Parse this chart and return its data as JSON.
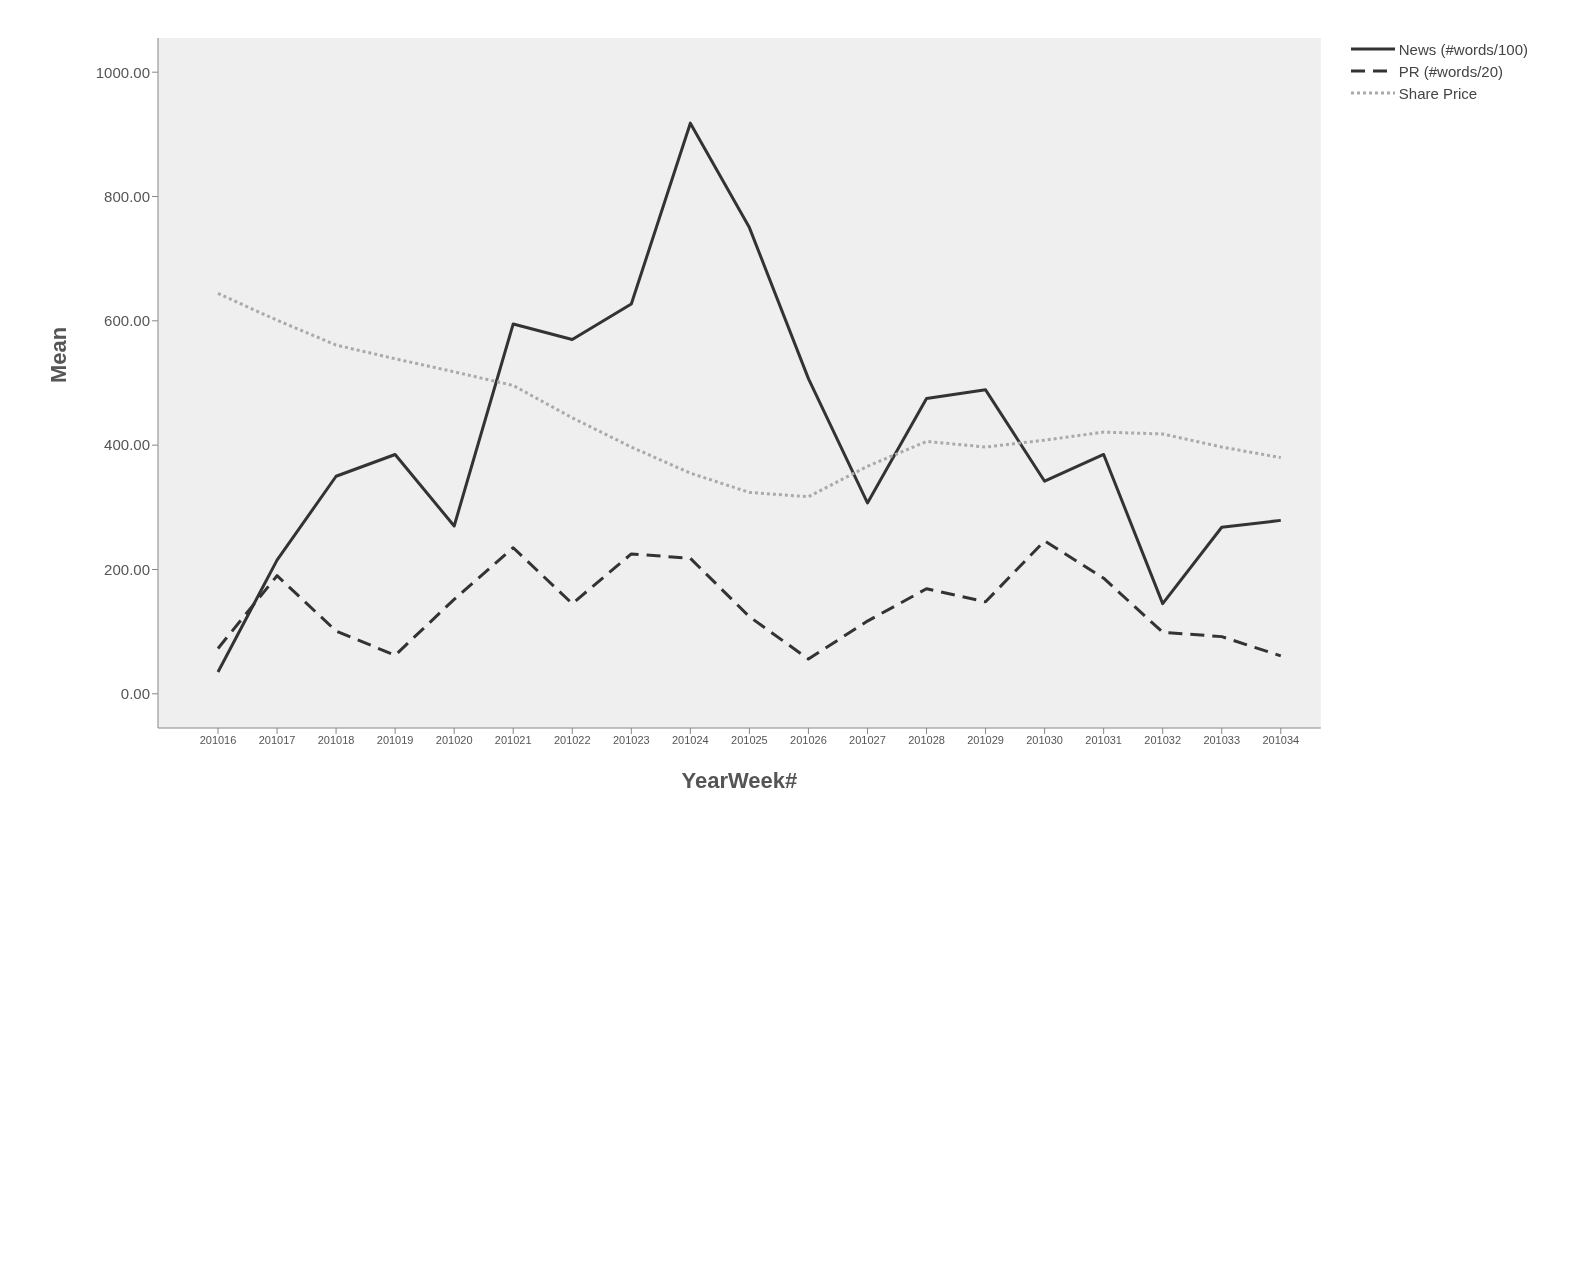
{
  "chart_data": {
    "type": "line",
    "xlabel": "YearWeek#",
    "ylabel": "Mean",
    "categories": [
      "201016",
      "201017",
      "201018",
      "201019",
      "201020",
      "201021",
      "201022",
      "201023",
      "201024",
      "201025",
      "201026",
      "201027",
      "201028",
      "201029",
      "201030",
      "201031",
      "201032",
      "201033",
      "201034"
    ],
    "series": [
      {
        "name": "News (#words/100)",
        "color": "#333333",
        "line_style": "solid",
        "values": [
          35,
          215,
          350,
          385,
          270,
          595,
          570,
          627,
          918,
          750,
          507,
          307,
          475,
          489,
          342,
          385,
          145,
          268,
          279
        ]
      },
      {
        "name": "PR (#words/20)",
        "color": "#333333",
        "line_style": "dashed",
        "values": [
          73,
          190,
          101,
          62,
          152,
          235,
          145,
          225,
          218,
          124,
          56,
          117,
          169,
          148,
          246,
          186,
          99,
          92,
          61
        ]
      },
      {
        "name": "Share Price",
        "color": "#aaaaaa",
        "line_style": "dotted",
        "values": [
          644,
          601,
          561,
          539,
          518,
          496,
          444,
          397,
          355,
          324,
          317,
          366,
          406,
          397,
          408,
          421,
          418,
          397,
          380
        ]
      }
    ],
    "ylim": [
      -55,
      1055
    ],
    "yticks": [
      {
        "value": 0,
        "label": "0.00"
      },
      {
        "value": 200,
        "label": "200.00"
      },
      {
        "value": 400,
        "label": "400.00"
      },
      {
        "value": 600,
        "label": "600.00"
      },
      {
        "value": 800,
        "label": "800.00"
      },
      {
        "value": 1000,
        "label": "1000.00"
      }
    ],
    "grid": false,
    "legend": "top right",
    "marker": "none"
  }
}
